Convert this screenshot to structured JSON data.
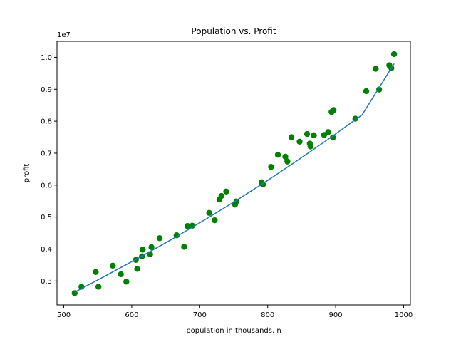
{
  "chart_data": {
    "type": "scatter",
    "title": "Population vs. Profit",
    "xlabel": "population in thousands, n",
    "ylabel": "profit",
    "y_offset_label": "1e7",
    "xlim": [
      490,
      1010
    ],
    "ylim": [
      2250000,
      10500000
    ],
    "x_ticks": [
      500,
      600,
      700,
      800,
      900,
      1000
    ],
    "x_tick_labels": [
      "500",
      "600",
      "700",
      "800",
      "900",
      "1000"
    ],
    "y_ticks": [
      3000000,
      4000000,
      5000000,
      6000000,
      7000000,
      8000000,
      9000000,
      10000000
    ],
    "y_tick_labels": [
      "0.3",
      "0.4",
      "0.5",
      "0.6",
      "0.7",
      "0.8",
      "0.9",
      "1.0"
    ],
    "grid": false,
    "colors": {
      "points": "#008000",
      "line": "#1f77b4",
      "axes": "#000000"
    },
    "series": [
      {
        "type": "scatter",
        "x": [
          516,
          526,
          547,
          551,
          572,
          584,
          592,
          606,
          608,
          615,
          616,
          627,
          629,
          641,
          666,
          677,
          682,
          689,
          714,
          722,
          729,
          732,
          739,
          752,
          754,
          791,
          793,
          805,
          815,
          826,
          829,
          835,
          847,
          858,
          862,
          863,
          868,
          883,
          889,
          894,
          896,
          897,
          929,
          945,
          959,
          964,
          979,
          982,
          986
        ],
        "y": [
          2620000,
          2820000,
          3280000,
          2820000,
          3480000,
          3210000,
          2980000,
          3660000,
          3380000,
          3770000,
          3980000,
          3840000,
          4060000,
          4340000,
          4430000,
          4070000,
          4720000,
          4730000,
          5130000,
          4900000,
          5550000,
          5660000,
          5800000,
          5390000,
          5490000,
          6090000,
          6020000,
          6570000,
          6950000,
          6890000,
          6740000,
          7500000,
          7360000,
          7600000,
          7300000,
          7210000,
          7560000,
          7570000,
          7660000,
          8290000,
          7490000,
          8350000,
          8080000,
          8940000,
          9640000,
          8990000,
          9750000,
          9660000,
          10100000
        ]
      },
      {
        "type": "line",
        "x": [
          516,
          563,
          610,
          657,
          704,
          751,
          798,
          845,
          892,
          939,
          986
        ],
        "y": [
          2650000,
          3180000,
          3720000,
          4280000,
          4870000,
          5480000,
          6120000,
          6790000,
          7480000,
          8200000,
          9800000
        ]
      }
    ]
  }
}
